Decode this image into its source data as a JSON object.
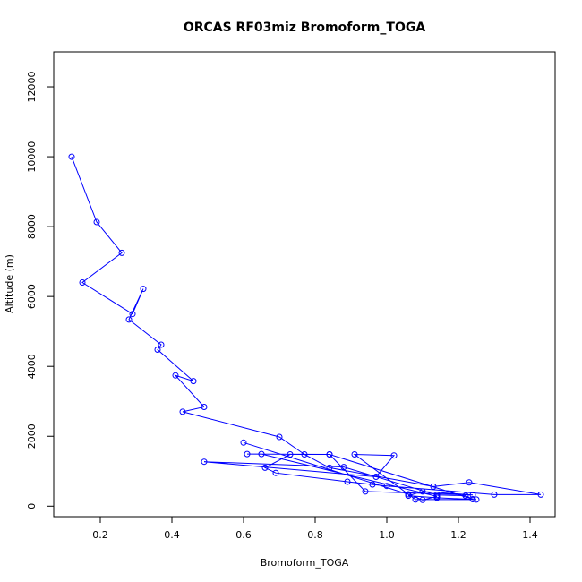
{
  "chart_data": {
    "type": "line",
    "title": "ORCAS RF03miz Bromoform_TOGA",
    "xlabel": "Bromoform_TOGA",
    "ylabel": "Altitude (m)",
    "xlim": [
      0.07,
      1.47
    ],
    "ylim": [
      -300,
      13000
    ],
    "xticks": [
      0.2,
      0.4,
      0.6,
      0.8,
      1.0,
      1.2,
      1.4
    ],
    "xtick_labels": [
      "0.2",
      "0.4",
      "0.6",
      "0.8",
      "1.0",
      "1.2",
      "1.4"
    ],
    "yticks": [
      0,
      2000,
      4000,
      6000,
      8000,
      10000,
      12000
    ],
    "ytick_labels": [
      "0",
      "2000",
      "4000",
      "6000",
      "8000",
      "10000",
      "12000"
    ],
    "grid": false,
    "series": [
      {
        "color": "#0000ff",
        "x": [
          0.12,
          0.19,
          0.26,
          0.15,
          0.29,
          0.32,
          0.28,
          0.37,
          0.36,
          0.46,
          0.41,
          0.49,
          0.43,
          0.7,
          0.77,
          0.84,
          1.13,
          1.23,
          1.43,
          1.3,
          1.0,
          0.96,
          0.89,
          0.69,
          0.66,
          0.73,
          0.84,
          0.94,
          1.24,
          1.1,
          1.06,
          1.14,
          1.25,
          1.08,
          0.91,
          1.02,
          0.97,
          0.49,
          0.88,
          1.14,
          1.22,
          1.24,
          0.84,
          0.61,
          0.65,
          1.14,
          1.1,
          1.06,
          0.6
        ],
        "y": [
          10000,
          8130,
          7250,
          6400,
          5500,
          6220,
          5340,
          4620,
          4480,
          3580,
          3740,
          2840,
          2700,
          1980,
          1480,
          1100,
          560,
          680,
          330,
          330,
          580,
          620,
          700,
          950,
          1100,
          1480,
          1480,
          420,
          320,
          420,
          300,
          240,
          190,
          190,
          1480,
          1450,
          840,
          1270,
          1120,
          320,
          300,
          200,
          1480,
          1490,
          1490,
          280,
          180,
          340,
          1820
        ]
      }
    ]
  }
}
